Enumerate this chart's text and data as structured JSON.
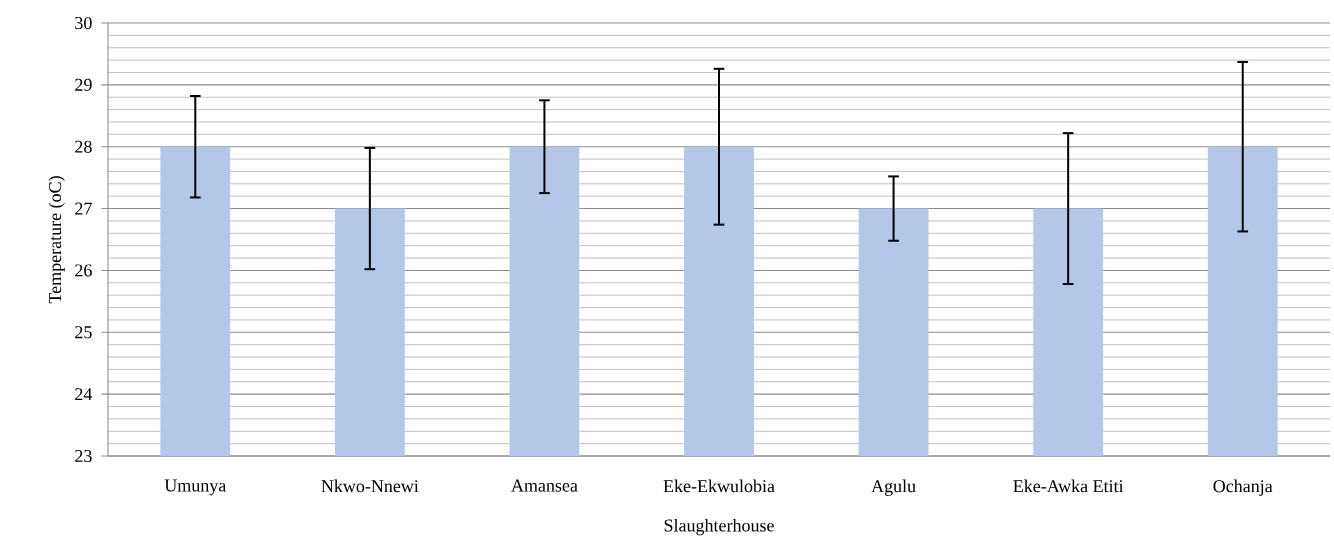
{
  "chart_data": {
    "type": "bar",
    "xlabel": "Slaughterhouse",
    "ylabel": "Temperature (oC)",
    "categories": [
      "Umunya",
      "Nkwo-Nnewi",
      "Amansea",
      "Eke-Ekwulobia",
      "Agulu",
      "Eke-Awka Etiti",
      "Ochanja"
    ],
    "values": [
      28,
      27,
      28,
      28,
      27,
      27,
      28
    ],
    "errors": [
      0.82,
      0.98,
      0.75,
      1.26,
      0.52,
      1.22,
      1.37
    ],
    "color": "#b4c7e9",
    "ylim": [
      23,
      30
    ],
    "yticks": [
      23,
      24,
      25,
      26,
      27,
      28,
      29,
      30
    ],
    "grid": "y"
  }
}
